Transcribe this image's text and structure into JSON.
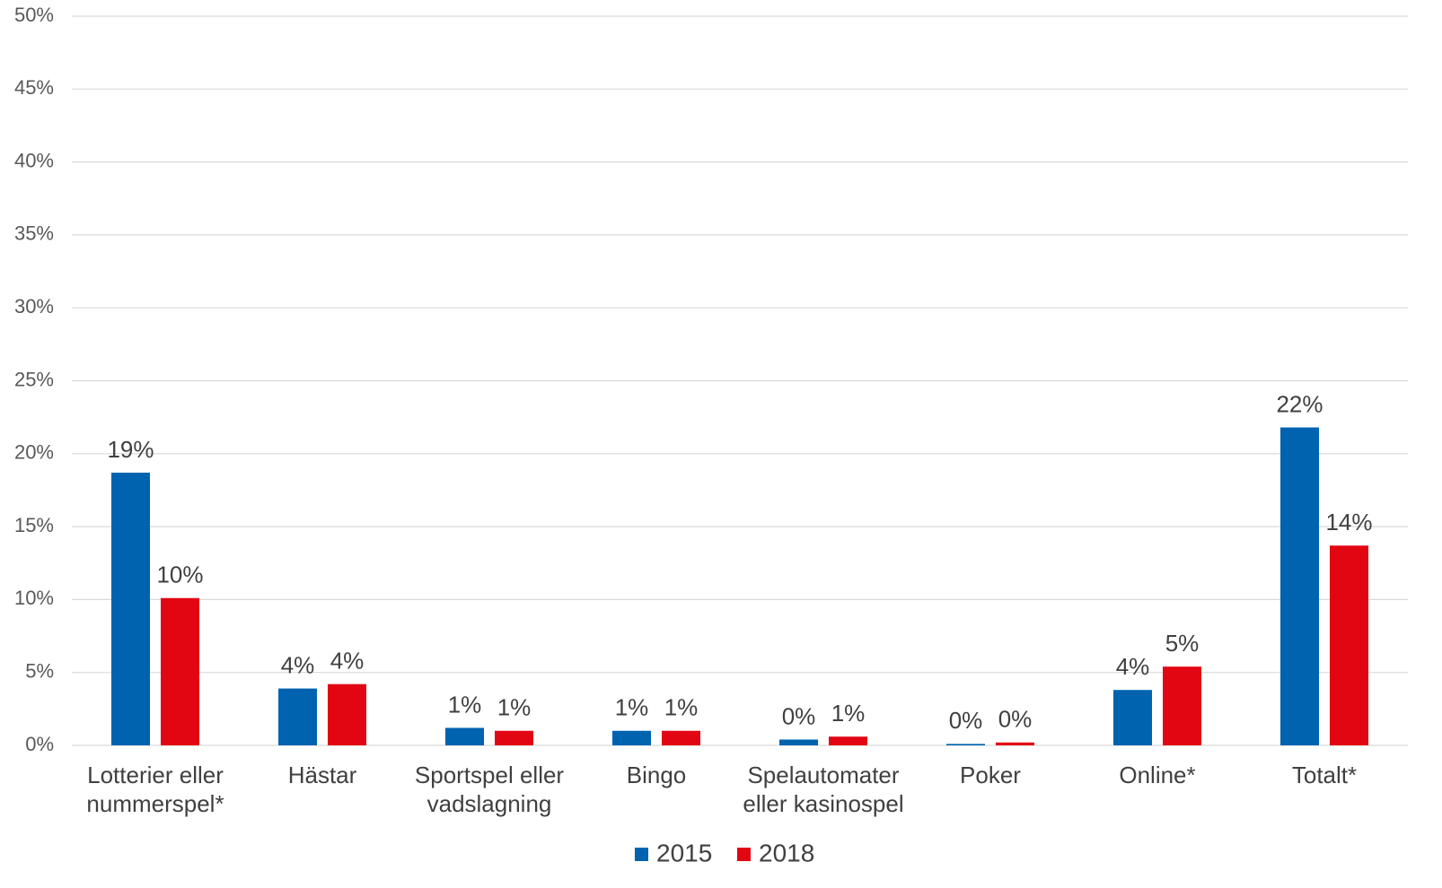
{
  "chart_data": {
    "type": "bar",
    "categories": [
      "Lotterier eller nummerspel*",
      "Hästar",
      "Sportspel eller vadslagning",
      "Bingo",
      "Spelautomater eller kasinospel",
      "Poker",
      "Online*",
      "Totalt*"
    ],
    "series": [
      {
        "name": "2015",
        "color": "#0063af",
        "values": [
          18.7,
          3.9,
          1.2,
          1.0,
          0.4,
          0.1,
          3.8,
          21.8
        ],
        "value_labels": [
          "19%",
          "4%",
          "1%",
          "1%",
          "0%",
          "0%",
          "4%",
          "22%"
        ]
      },
      {
        "name": "2018",
        "color": "#e20613",
        "values": [
          10.1,
          4.2,
          1.0,
          1.0,
          0.6,
          0.2,
          5.4,
          13.7
        ],
        "value_labels": [
          "10%",
          "4%",
          "1%",
          "1%",
          "1%",
          "0%",
          "5%",
          "14%"
        ]
      }
    ],
    "ylim": [
      0,
      50
    ],
    "yticks": [
      {
        "value": 0,
        "label": "0%"
      },
      {
        "value": 5,
        "label": "5%"
      },
      {
        "value": 10,
        "label": "10%"
      },
      {
        "value": 15,
        "label": "15%"
      },
      {
        "value": 20,
        "label": "20%"
      },
      {
        "value": 25,
        "label": "25%"
      },
      {
        "value": 30,
        "label": "30%"
      },
      {
        "value": 35,
        "label": "35%"
      },
      {
        "value": 40,
        "label": "40%"
      },
      {
        "value": 45,
        "label": "45%"
      },
      {
        "value": 50,
        "label": "50%"
      }
    ],
    "grid": true,
    "legend": "bottom"
  }
}
